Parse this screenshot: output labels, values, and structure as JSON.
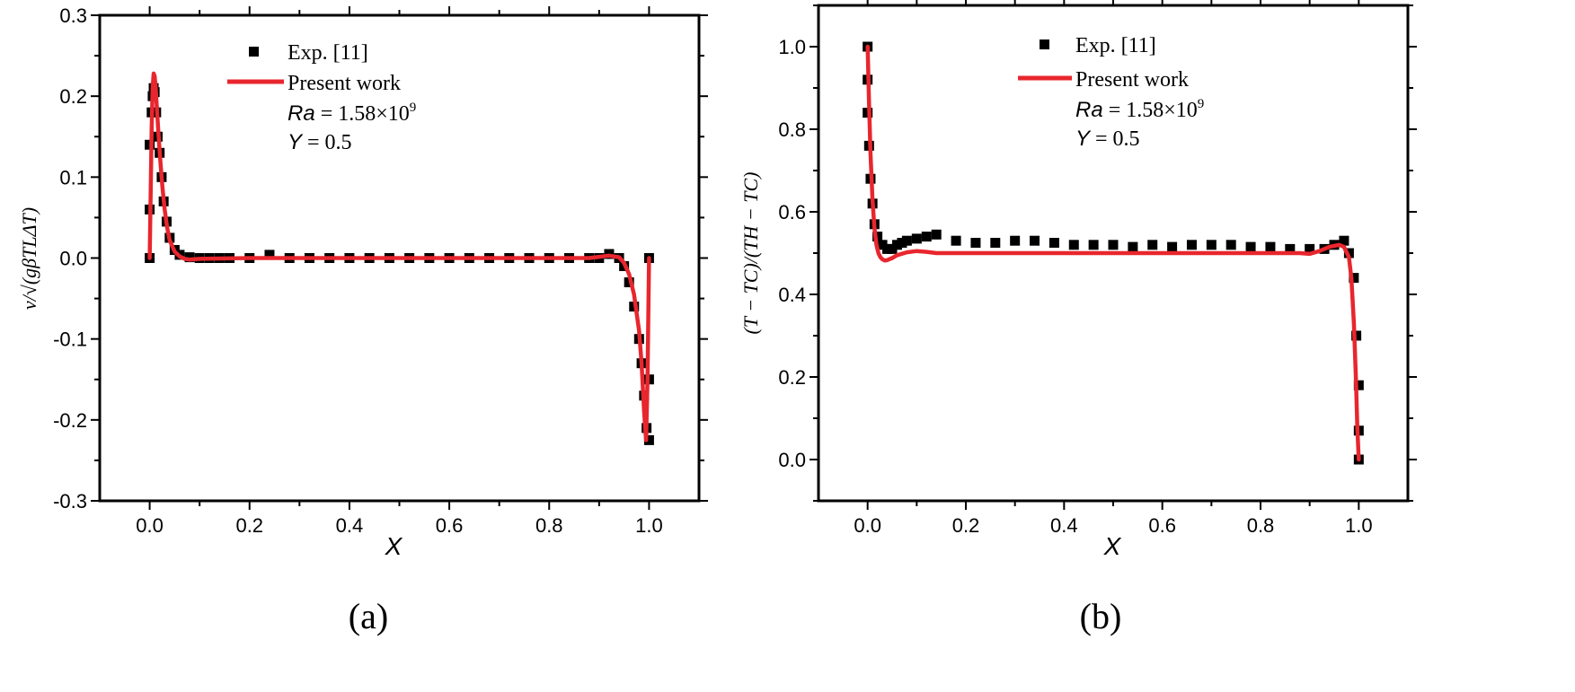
{
  "colors": {
    "experiment": "#000000",
    "model": "#e8262e",
    "axis": "#000000"
  },
  "chart_data": [
    {
      "type": "scatter",
      "panel_label": "(a)",
      "xlabel": "X",
      "ylabel": "v/√(gβTLΔT)",
      "xlim": [
        -0.1,
        1.1
      ],
      "ylim": [
        -0.3,
        0.3
      ],
      "x_ticks": [
        "0.0",
        "0.2",
        "0.4",
        "0.6",
        "0.8",
        "1.0"
      ],
      "y_ticks": [
        "-0.3",
        "-0.2",
        "-0.1",
        "0.0",
        "0.1",
        "0.2",
        "0.3"
      ],
      "legend": {
        "marker_label": "Exp. [11]",
        "line_label": "Present work",
        "position": "top-center"
      },
      "annotations": {
        "ra_label": "Ra",
        "ra_value": " = 1.58×10",
        "ra_exp": "9",
        "y_label": "Y",
        "y_value": " = 0.5"
      },
      "series": [
        {
          "name": "Exp. [11]",
          "kind": "marker",
          "x": [
            0.0,
            0.0,
            0.0,
            0.004,
            0.006,
            0.008,
            0.01,
            0.013,
            0.016,
            0.02,
            0.024,
            0.028,
            0.034,
            0.04,
            0.05,
            0.06,
            0.08,
            0.1,
            0.12,
            0.14,
            0.16,
            0.2,
            0.24,
            0.28,
            0.32,
            0.36,
            0.4,
            0.44,
            0.48,
            0.52,
            0.56,
            0.6,
            0.64,
            0.68,
            0.72,
            0.76,
            0.8,
            0.84,
            0.88,
            0.9,
            0.92,
            0.94,
            0.95,
            0.96,
            0.97,
            0.98,
            0.985,
            0.99,
            0.995,
            1.0,
            1.0,
            1.0
          ],
          "y": [
            0.0,
            0.06,
            0.14,
            0.18,
            0.2,
            0.21,
            0.205,
            0.18,
            0.15,
            0.13,
            0.1,
            0.07,
            0.045,
            0.025,
            0.01,
            0.004,
            0.001,
            0.0,
            0.0,
            0.0,
            0.0,
            0.0,
            0.004,
            0.0,
            0.0,
            0.0,
            0.0,
            0.0,
            0.0,
            0.0,
            0.0,
            0.0,
            0.0,
            0.0,
            0.0,
            0.0,
            0.0,
            0.0,
            0.0,
            0.0,
            0.005,
            0.0,
            -0.01,
            -0.03,
            -0.06,
            -0.1,
            -0.13,
            -0.17,
            -0.21,
            -0.225,
            -0.15,
            0.0
          ]
        },
        {
          "name": "Present work",
          "kind": "line",
          "x": [
            0.0,
            0.002,
            0.004,
            0.006,
            0.008,
            0.01,
            0.012,
            0.015,
            0.018,
            0.022,
            0.026,
            0.03,
            0.035,
            0.04,
            0.05,
            0.06,
            0.07,
            0.08,
            0.1,
            0.2,
            0.4,
            0.6,
            0.8,
            0.88,
            0.92,
            0.94,
            0.95,
            0.96,
            0.97,
            0.98,
            0.985,
            0.99,
            0.994,
            0.997,
            1.0
          ],
          "y": [
            0.0,
            0.08,
            0.16,
            0.21,
            0.228,
            0.225,
            0.21,
            0.18,
            0.15,
            0.115,
            0.085,
            0.06,
            0.038,
            0.022,
            0.008,
            0.002,
            -0.001,
            -0.002,
            -0.001,
            0.0,
            0.0,
            0.0,
            0.0,
            0.0,
            0.003,
            0.001,
            -0.006,
            -0.02,
            -0.045,
            -0.09,
            -0.13,
            -0.19,
            -0.225,
            -0.15,
            0.0
          ]
        }
      ]
    },
    {
      "type": "scatter",
      "panel_label": "(b)",
      "xlabel": "X",
      "ylabel": "(T − TC)/(TH − TC)",
      "xlim": [
        -0.1,
        1.1
      ],
      "ylim": [
        -0.1,
        1.1
      ],
      "x_ticks": [
        "0.0",
        "0.2",
        "0.4",
        "0.6",
        "0.8",
        "1.0"
      ],
      "y_ticks": [
        "0.0",
        "0.2",
        "0.4",
        "0.6",
        "0.8",
        "1.0"
      ],
      "legend": {
        "marker_label": "Exp. [11]",
        "line_label": "Present work",
        "position": "top-center"
      },
      "annotations": {
        "ra_label": "Ra",
        "ra_value": " = 1.58×10",
        "ra_exp": "9",
        "y_label": "Y",
        "y_value": " = 0.5"
      },
      "series": [
        {
          "name": "Exp. [11]",
          "kind": "marker",
          "x": [
            0.0,
            0.0,
            0.0,
            0.003,
            0.006,
            0.01,
            0.014,
            0.02,
            0.03,
            0.04,
            0.05,
            0.06,
            0.07,
            0.08,
            0.1,
            0.12,
            0.14,
            0.18,
            0.22,
            0.26,
            0.3,
            0.34,
            0.38,
            0.42,
            0.46,
            0.5,
            0.54,
            0.58,
            0.62,
            0.66,
            0.7,
            0.74,
            0.78,
            0.82,
            0.86,
            0.9,
            0.93,
            0.95,
            0.97,
            0.98,
            0.99,
            0.995,
            1.0,
            1.0,
            1.0
          ],
          "y": [
            1.0,
            0.92,
            0.84,
            0.76,
            0.68,
            0.62,
            0.57,
            0.54,
            0.52,
            0.51,
            0.51,
            0.52,
            0.525,
            0.53,
            0.535,
            0.54,
            0.545,
            0.53,
            0.525,
            0.525,
            0.53,
            0.53,
            0.525,
            0.52,
            0.52,
            0.52,
            0.515,
            0.52,
            0.515,
            0.52,
            0.52,
            0.52,
            0.515,
            0.515,
            0.51,
            0.51,
            0.51,
            0.52,
            0.53,
            0.5,
            0.44,
            0.3,
            0.18,
            0.07,
            0.0
          ]
        },
        {
          "name": "Present work",
          "kind": "line",
          "x": [
            0.0,
            0.003,
            0.006,
            0.01,
            0.014,
            0.018,
            0.022,
            0.026,
            0.03,
            0.035,
            0.04,
            0.05,
            0.06,
            0.08,
            0.1,
            0.12,
            0.14,
            0.2,
            0.4,
            0.6,
            0.8,
            0.88,
            0.9,
            0.92,
            0.94,
            0.96,
            0.97,
            0.98,
            0.985,
            0.99,
            0.994,
            0.997,
            1.0
          ],
          "y": [
            1.0,
            0.86,
            0.74,
            0.63,
            0.56,
            0.52,
            0.5,
            0.49,
            0.485,
            0.482,
            0.483,
            0.488,
            0.495,
            0.502,
            0.505,
            0.503,
            0.5,
            0.5,
            0.5,
            0.5,
            0.5,
            0.5,
            0.498,
            0.505,
            0.515,
            0.52,
            0.515,
            0.49,
            0.44,
            0.33,
            0.2,
            0.08,
            0.0
          ]
        }
      ]
    }
  ]
}
